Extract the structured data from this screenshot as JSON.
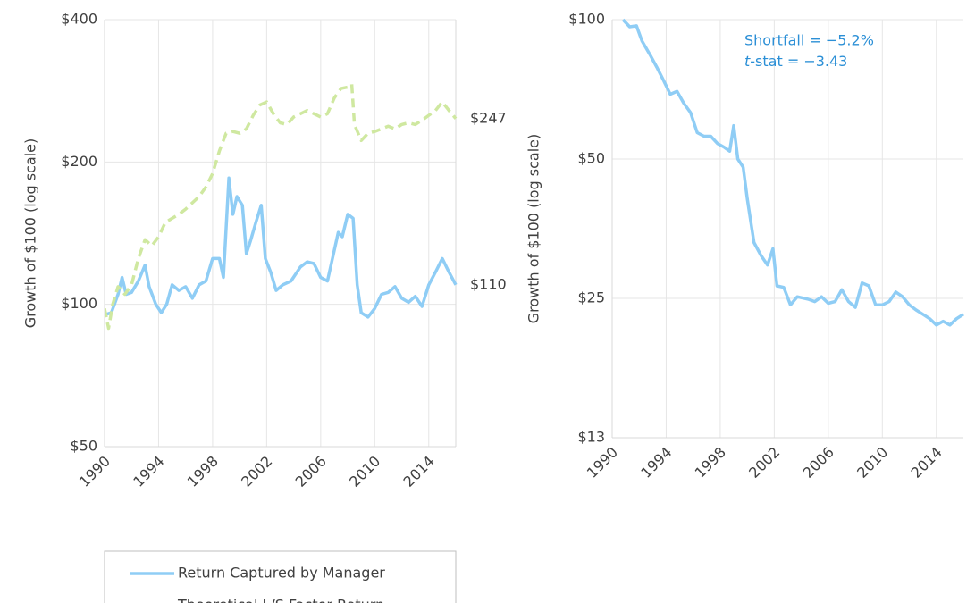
{
  "chart_data": [
    {
      "type": "line",
      "ylabel": "Growth of $100 (log scale)",
      "log_scale": true,
      "grid": true,
      "xlim": [
        1990,
        2016
      ],
      "xticks": [
        1990,
        1994,
        1998,
        2002,
        2006,
        2010,
        2014
      ],
      "ylim": [
        50,
        400
      ],
      "yticks": [
        {
          "value": 50,
          "label": "$50"
        },
        {
          "value": 100,
          "label": "$100"
        },
        {
          "value": 200,
          "label": "$200"
        },
        {
          "value": 400,
          "label": "$400"
        }
      ],
      "legend": "bottom",
      "series": [
        {
          "name": "Return Captured by Manager",
          "color": "#8fcdf5",
          "dash": false,
          "end_label": "$110",
          "x": [
            1990.0,
            1990.5,
            1991.0,
            1991.3,
            1991.6,
            1992.0,
            1992.5,
            1993.0,
            1993.3,
            1993.8,
            1994.2,
            1994.6,
            1995.0,
            1995.5,
            1996.0,
            1996.5,
            1997.0,
            1997.5,
            1998.0,
            1998.5,
            1998.8,
            1999.2,
            1999.5,
            1999.8,
            2000.2,
            2000.5,
            2000.8,
            2001.2,
            2001.6,
            2001.9,
            2002.3,
            2002.7,
            2003.2,
            2003.8,
            2004.5,
            2005.0,
            2005.5,
            2006.0,
            2006.5,
            2007.0,
            2007.3,
            2007.6,
            2008.0,
            2008.4,
            2008.7,
            2009.0,
            2009.5,
            2010.0,
            2010.5,
            2011.0,
            2011.5,
            2012.0,
            2012.5,
            2013.0,
            2013.5,
            2014.0,
            2014.5,
            2015.0,
            2015.5,
            2016.0
          ],
          "values": [
            95,
            96,
            105,
            114,
            105,
            106,
            112,
            121,
            109,
            100,
            96,
            100,
            110,
            107,
            109,
            103,
            110,
            112,
            125,
            125,
            114,
            185,
            155,
            169,
            162,
            128,
            136,
            149,
            162,
            125,
            117,
            107,
            110,
            112,
            120,
            123,
            122,
            114,
            112,
            130,
            142,
            139,
            155,
            152,
            110,
            96,
            94,
            98,
            105,
            106,
            109,
            103,
            101,
            104,
            99,
            110,
            117,
            125,
            117,
            110
          ]
        },
        {
          "name": "Theoretical L/S Factor Return",
          "color": "#cfe8a0",
          "dash": true,
          "end_label": "$247",
          "x": [
            1990.0,
            1990.3,
            1990.6,
            1991.0,
            1991.5,
            1992.0,
            1992.5,
            1993.0,
            1993.5,
            1994.0,
            1994.5,
            1995.0,
            1995.5,
            1996.0,
            1996.5,
            1997.0,
            1997.5,
            1998.0,
            1998.5,
            1999.0,
            1999.5,
            2000.0,
            2000.5,
            2001.0,
            2001.5,
            2002.0,
            2002.5,
            2003.0,
            2003.5,
            2004.0,
            2004.5,
            2005.0,
            2005.5,
            2006.0,
            2006.5,
            2007.0,
            2007.5,
            2008.0,
            2008.3,
            2008.5,
            2009.0,
            2009.5,
            2010.0,
            2010.5,
            2011.0,
            2011.5,
            2012.0,
            2012.5,
            2013.0,
            2013.5,
            2014.0,
            2014.5,
            2015.0,
            2015.5,
            2016.0
          ],
          "values": [
            98,
            89,
            100,
            109,
            105,
            110,
            125,
            137,
            133,
            139,
            149,
            152,
            155,
            159,
            164,
            169,
            177,
            189,
            211,
            230,
            232,
            230,
            235,
            251,
            264,
            268,
            253,
            242,
            240,
            249,
            253,
            257,
            253,
            249,
            253,
            273,
            286,
            288,
            292,
            240,
            222,
            230,
            232,
            235,
            238,
            235,
            240,
            242,
            240,
            245,
            251,
            257,
            268,
            257,
            247
          ]
        }
      ]
    },
    {
      "type": "line",
      "ylabel": "Growth of $100 (log scale)",
      "log_scale": true,
      "grid": true,
      "xlim": [
        1990,
        2016
      ],
      "xticks": [
        1990,
        1994,
        1998,
        2002,
        2006,
        2010,
        2014
      ],
      "ylim": [
        12.5,
        100
      ],
      "yticks": [
        {
          "value": 12.5,
          "label": "$13"
        },
        {
          "value": 25,
          "label": "$25"
        },
        {
          "value": 50,
          "label": "$50"
        },
        {
          "value": 100,
          "label": "$100"
        }
      ],
      "annotation": [
        "Shortfall = −5.2%",
        "t",
        "-stat = −3.43"
      ],
      "series": [
        {
          "color": "#8fcdf5",
          "dash": false,
          "x": [
            1990.8,
            1991.3,
            1991.8,
            1992.2,
            1992.8,
            1993.3,
            1993.8,
            1994.3,
            1994.8,
            1995.3,
            1995.8,
            1996.3,
            1996.8,
            1997.3,
            1997.8,
            1998.3,
            1998.7,
            1999.0,
            1999.3,
            1999.7,
            2000.0,
            2000.5,
            2001.0,
            2001.5,
            2001.9,
            2002.2,
            2002.7,
            2003.2,
            2003.7,
            2004.5,
            2005.0,
            2005.5,
            2006.0,
            2006.5,
            2007.0,
            2007.5,
            2008.0,
            2008.5,
            2009.0,
            2009.5,
            2010.0,
            2010.5,
            2011.0,
            2011.5,
            2012.0,
            2012.5,
            2013.0,
            2013.5,
            2014.0,
            2014.5,
            2015.0,
            2015.5,
            2016.0
          ],
          "values": [
            100,
            96.5,
            97,
            90,
            84,
            79,
            74,
            69,
            70,
            66,
            63,
            57,
            56,
            56,
            54,
            53,
            52,
            59,
            50,
            48,
            41,
            33,
            31,
            29.5,
            32,
            26.6,
            26.4,
            24.2,
            25.2,
            24.9,
            24.6,
            25.2,
            24.4,
            24.6,
            26.1,
            24.6,
            23.9,
            27,
            26.6,
            24.2,
            24.2,
            24.6,
            25.8,
            25.2,
            24.2,
            23.6,
            23.1,
            22.6,
            21.9,
            22.3,
            21.9,
            22.6,
            23.1
          ]
        }
      ]
    }
  ]
}
